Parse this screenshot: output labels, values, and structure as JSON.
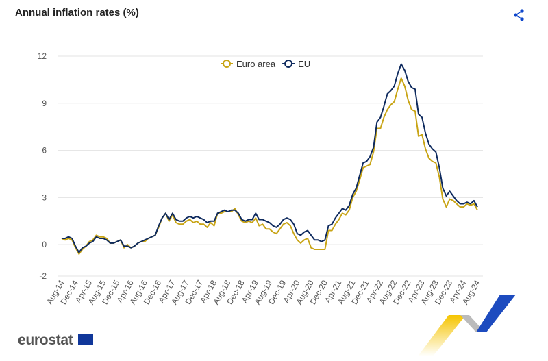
{
  "header": {
    "title": "Annual inflation rates (%)",
    "share_icon": "share-icon"
  },
  "footer": {
    "logo_text": "eurostat"
  },
  "chart_data": {
    "type": "line",
    "title": "Annual inflation rates (%)",
    "xlabel": "",
    "ylabel": "",
    "ylim": [
      -2,
      12
    ],
    "yticks": [
      -2,
      0,
      3,
      6,
      9,
      12
    ],
    "grid": true,
    "legend_position": "top-center",
    "start": "Aug-14",
    "xticks": [
      "Aug-14",
      "Dec-14",
      "Apr-15",
      "Aug-15",
      "Dec-15",
      "Apr-16",
      "Aug-16",
      "Dec-16",
      "Apr-17",
      "Aug-17",
      "Dec-17",
      "Apr-18",
      "Aug-18",
      "Dec-18",
      "Apr-19",
      "Aug-19",
      "Dec-19",
      "Apr-20",
      "Aug-20",
      "Dec-20",
      "Apr-21",
      "Aug-21",
      "Dec-21",
      "Apr-22",
      "Aug-22",
      "Dec-22",
      "Apr-23",
      "Aug-23",
      "Dec-23",
      "Apr-24",
      "Aug-24"
    ],
    "series": [
      {
        "name": "Euro area",
        "color": "#c8a415",
        "values": [
          0.4,
          0.3,
          0.4,
          0.3,
          -0.2,
          -0.6,
          -0.3,
          -0.1,
          0.2,
          0.3,
          0.6,
          0.5,
          0.5,
          0.4,
          0.1,
          0.1,
          0.2,
          0.3,
          -0.2,
          0.0,
          -0.2,
          -0.1,
          0.1,
          0.2,
          0.2,
          0.4,
          0.5,
          0.6,
          1.1,
          1.7,
          2.0,
          1.5,
          1.9,
          1.4,
          1.3,
          1.3,
          1.5,
          1.6,
          1.4,
          1.5,
          1.3,
          1.3,
          1.1,
          1.4,
          1.2,
          2.0,
          2.0,
          2.1,
          2.1,
          2.1,
          2.3,
          1.9,
          1.5,
          1.4,
          1.5,
          1.4,
          1.7,
          1.2,
          1.3,
          1.0,
          1.0,
          0.8,
          0.7,
          1.0,
          1.3,
          1.4,
          1.2,
          0.7,
          0.3,
          0.1,
          0.3,
          0.4,
          -0.2,
          -0.3,
          -0.3,
          -0.3,
          -0.3,
          0.9,
          0.9,
          1.3,
          1.6,
          2.0,
          1.9,
          2.2,
          3.0,
          3.4,
          4.1,
          4.9,
          5.0,
          5.1,
          5.9,
          7.4,
          7.4,
          8.1,
          8.6,
          8.9,
          9.1,
          9.9,
          10.6,
          10.1,
          9.2,
          8.6,
          8.5,
          6.9,
          7.0,
          6.1,
          5.5,
          5.3,
          5.2,
          4.3,
          2.9,
          2.4,
          2.9,
          2.8,
          2.6,
          2.4,
          2.4,
          2.6,
          2.5,
          2.6,
          2.2
        ]
      },
      {
        "name": "EU",
        "color": "#0e2a5e",
        "values": [
          0.4,
          0.4,
          0.5,
          0.4,
          -0.1,
          -0.5,
          -0.2,
          -0.1,
          0.1,
          0.2,
          0.5,
          0.4,
          0.4,
          0.3,
          0.1,
          0.1,
          0.2,
          0.3,
          -0.1,
          -0.1,
          -0.2,
          -0.1,
          0.1,
          0.2,
          0.3,
          0.4,
          0.5,
          0.6,
          1.2,
          1.7,
          2.0,
          1.6,
          2.0,
          1.6,
          1.5,
          1.5,
          1.7,
          1.8,
          1.7,
          1.8,
          1.7,
          1.6,
          1.4,
          1.5,
          1.5,
          2.0,
          2.1,
          2.2,
          2.1,
          2.2,
          2.2,
          2.0,
          1.6,
          1.5,
          1.6,
          1.6,
          2.0,
          1.6,
          1.6,
          1.5,
          1.4,
          1.2,
          1.1,
          1.3,
          1.6,
          1.7,
          1.6,
          1.3,
          0.7,
          0.6,
          0.8,
          0.9,
          0.6,
          0.3,
          0.3,
          0.2,
          0.3,
          1.2,
          1.3,
          1.7,
          2.0,
          2.3,
          2.2,
          2.5,
          3.2,
          3.6,
          4.4,
          5.2,
          5.3,
          5.6,
          6.2,
          7.8,
          8.1,
          8.8,
          9.6,
          9.8,
          10.1,
          10.9,
          11.5,
          11.1,
          10.4,
          10.0,
          9.9,
          8.3,
          8.1,
          7.1,
          6.4,
          6.1,
          5.9,
          4.9,
          3.6,
          3.1,
          3.4,
          3.1,
          2.8,
          2.6,
          2.6,
          2.7,
          2.6,
          2.8,
          2.4
        ]
      }
    ]
  }
}
